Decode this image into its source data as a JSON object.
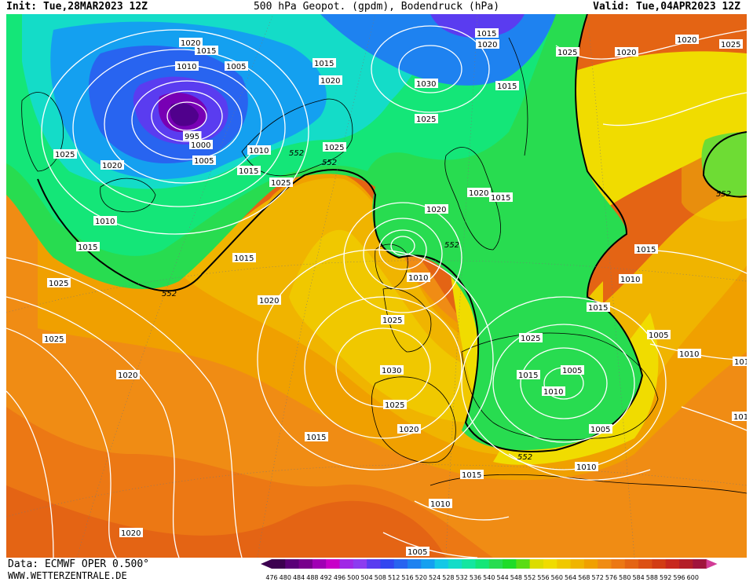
{
  "header": {
    "init": "Init: Tue,28MAR2023 12Z",
    "title": "500 hPa Geopot. (gpdm), Bodendruck (hPa)",
    "valid": "Valid: Tue,04APR2023 12Z"
  },
  "footer": {
    "data_source": "Data: ECMWF OPER 0.500°",
    "website": "WWW.WETTERZENTRALE.DE"
  },
  "legend": {
    "values": [
      "476",
      "480",
      "484",
      "488",
      "492",
      "496",
      "500",
      "504",
      "508",
      "512",
      "516",
      "520",
      "524",
      "528",
      "532",
      "536",
      "540",
      "544",
      "548",
      "552",
      "556",
      "560",
      "564",
      "568",
      "572",
      "576",
      "580",
      "584",
      "588",
      "592",
      "596",
      "600"
    ],
    "colors": [
      "#3c0050",
      "#5a0078",
      "#78008c",
      "#a000b4",
      "#c800c8",
      "#a028e6",
      "#8c3cf0",
      "#5a3cf0",
      "#3246f0",
      "#2864f0",
      "#1e82f0",
      "#14a0f0",
      "#14c8e6",
      "#14dcc8",
      "#14e6a0",
      "#14e678",
      "#28dc50",
      "#1edc28",
      "#5adc14",
      "#dcdc00",
      "#f0dc00",
      "#f0c800",
      "#f0b400",
      "#f0a000",
      "#f08c14",
      "#ec7814",
      "#e46414",
      "#dc5014",
      "#d23c14",
      "#c8281e",
      "#b41e28",
      "#a0143c"
    ]
  },
  "map": {
    "isobars": [
      {
        "label": "1020"
      },
      {
        "label": "1015"
      },
      {
        "label": "1010"
      },
      {
        "label": "1005"
      },
      {
        "label": "1015"
      },
      {
        "label": "1020"
      },
      {
        "label": "1030"
      },
      {
        "label": "1025"
      },
      {
        "label": "1015"
      },
      {
        "label": "1015"
      },
      {
        "label": "1020"
      },
      {
        "label": "1025"
      },
      {
        "label": "1020"
      },
      {
        "label": "995"
      },
      {
        "label": "1000"
      },
      {
        "label": "1005"
      },
      {
        "label": "1010"
      },
      {
        "label": "1025"
      },
      {
        "label": "1025"
      },
      {
        "label": "1020"
      },
      {
        "label": "1015"
      },
      {
        "label": "1025"
      },
      {
        "label": "1020"
      },
      {
        "label": "1025"
      },
      {
        "label": "1020"
      },
      {
        "label": "1010"
      },
      {
        "label": "1015"
      },
      {
        "label": "1020"
      },
      {
        "label": "1015"
      },
      {
        "label": "1010"
      },
      {
        "label": "1015"
      },
      {
        "label": "1025"
      },
      {
        "label": "1015"
      },
      {
        "label": "1010"
      },
      {
        "label": "1015"
      },
      {
        "label": "1025"
      },
      {
        "label": "1020"
      },
      {
        "label": "1025"
      },
      {
        "label": "1005"
      },
      {
        "label": "1025"
      },
      {
        "label": "1030"
      },
      {
        "label": "1020"
      },
      {
        "label": "1015"
      },
      {
        "label": "1005"
      },
      {
        "label": "1010"
      },
      {
        "label": "1010"
      },
      {
        "label": "1010"
      },
      {
        "label": "1025"
      },
      {
        "label": "1020"
      },
      {
        "label": "1015"
      },
      {
        "label": "1005"
      },
      {
        "label": "1010"
      },
      {
        "label": "1015"
      },
      {
        "label": "1010"
      },
      {
        "label": "1020"
      },
      {
        "label": "1005"
      },
      {
        "label": "1010"
      }
    ],
    "contour_552": [
      "552",
      "552",
      "552",
      "552",
      "552",
      "552"
    ]
  }
}
